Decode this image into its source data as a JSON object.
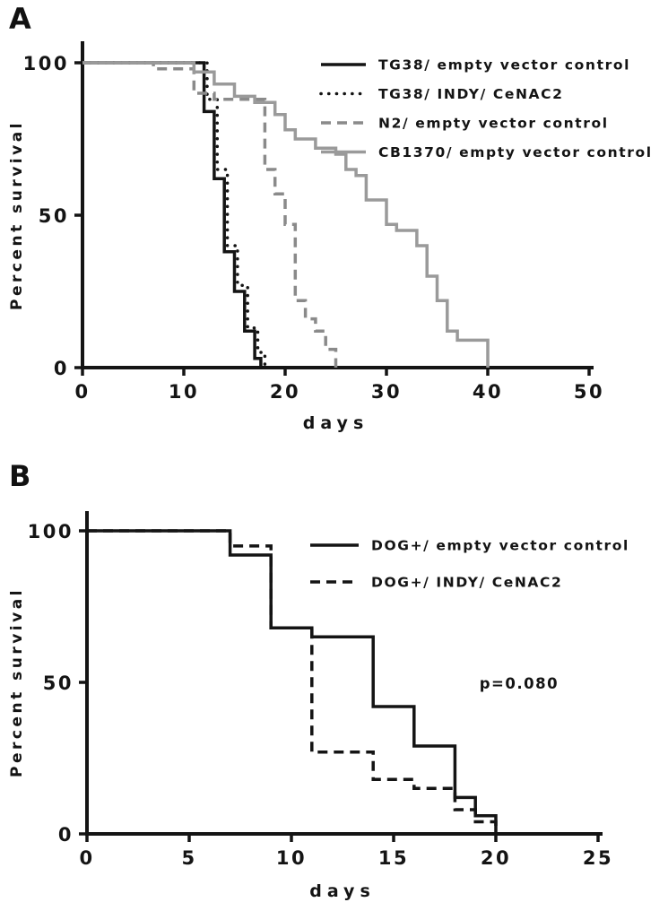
{
  "background": "#ffffff",
  "panels": [
    {
      "label": "A"
    },
    {
      "label": "B"
    }
  ],
  "chart_data": [
    {
      "type": "line",
      "subtype": "kaplan-meier-step",
      "panel": "A",
      "title": "",
      "xlabel": "days",
      "ylabel": "Percent survival",
      "xlim": [
        0,
        50
      ],
      "ylim": [
        0,
        100
      ],
      "xticks": [
        0,
        10,
        20,
        30,
        40,
        50
      ],
      "yticks": [
        0,
        50,
        100
      ],
      "grid": false,
      "legend_position": "inside-top-right",
      "series": [
        {
          "name": "TG38/ empty vector control",
          "color": "#141414",
          "dash": "solid",
          "points": [
            [
              0,
              100
            ],
            [
              12,
              84
            ],
            [
              13,
              62
            ],
            [
              14,
              38
            ],
            [
              15,
              25
            ],
            [
              16,
              12
            ],
            [
              17,
              3
            ],
            [
              17.6,
              0
            ]
          ]
        },
        {
          "name": "TG38/ INDY/ CeNAC2",
          "color": "#141414",
          "dash": "dotted",
          "points": [
            [
              0,
              100
            ],
            [
              12.3,
              88
            ],
            [
              13.3,
              65
            ],
            [
              14.3,
              40
            ],
            [
              15.3,
              27
            ],
            [
              16.3,
              13
            ],
            [
              17.3,
              5
            ],
            [
              18,
              0
            ]
          ]
        },
        {
          "name": "N2/ empty vector control",
          "color": "#8a8a8a",
          "dash": "dashed",
          "points": [
            [
              0,
              100
            ],
            [
              7,
              98
            ],
            [
              11,
              90
            ],
            [
              13,
              88
            ],
            [
              18,
              65
            ],
            [
              19,
              57
            ],
            [
              20,
              47
            ],
            [
              21,
              22
            ],
            [
              22,
              16
            ],
            [
              23,
              12
            ],
            [
              24,
              6
            ],
            [
              25,
              0
            ]
          ]
        },
        {
          "name": "CB1370/ empty vector control",
          "color": "#9a9a9a",
          "dash": "solid",
          "points": [
            [
              0,
              100
            ],
            [
              11,
              97
            ],
            [
              13,
              93
            ],
            [
              15,
              89
            ],
            [
              17,
              87
            ],
            [
              19,
              83
            ],
            [
              20,
              78
            ],
            [
              21,
              75
            ],
            [
              23,
              72
            ],
            [
              25,
              70
            ],
            [
              26,
              65
            ],
            [
              27,
              63
            ],
            [
              28,
              55
            ],
            [
              30,
              47
            ],
            [
              31,
              45
            ],
            [
              33,
              40
            ],
            [
              34,
              30
            ],
            [
              35,
              22
            ],
            [
              36,
              12
            ],
            [
              37,
              9
            ],
            [
              40,
              0
            ]
          ]
        }
      ]
    },
    {
      "type": "line",
      "subtype": "kaplan-meier-step",
      "panel": "B",
      "title": "",
      "xlabel": "days",
      "ylabel": "Percent survival",
      "xlim": [
        0,
        25
      ],
      "ylim": [
        0,
        100
      ],
      "xticks": [
        0,
        5,
        10,
        15,
        20,
        25
      ],
      "yticks": [
        0,
        50,
        100
      ],
      "grid": false,
      "legend_position": "inside-top-right",
      "annotations": [
        {
          "text": "p=0.080",
          "x": 19.2,
          "y": 48
        }
      ],
      "series": [
        {
          "name": "DOG+/ empty vector control",
          "color": "#141414",
          "dash": "solid",
          "points": [
            [
              0,
              100
            ],
            [
              7,
              92
            ],
            [
              9,
              68
            ],
            [
              11,
              65
            ],
            [
              14,
              42
            ],
            [
              16,
              29
            ],
            [
              18,
              12
            ],
            [
              19,
              6
            ],
            [
              20,
              0
            ]
          ]
        },
        {
          "name": "DOG+/ INDY/ CeNAC2",
          "color": "#141414",
          "dash": "dashed",
          "points": [
            [
              0,
              100
            ],
            [
              7,
              95
            ],
            [
              9,
              68
            ],
            [
              11,
              27
            ],
            [
              14,
              18
            ],
            [
              16,
              15
            ],
            [
              18,
              8
            ],
            [
              19,
              4
            ],
            [
              20,
              0
            ]
          ]
        }
      ]
    }
  ]
}
